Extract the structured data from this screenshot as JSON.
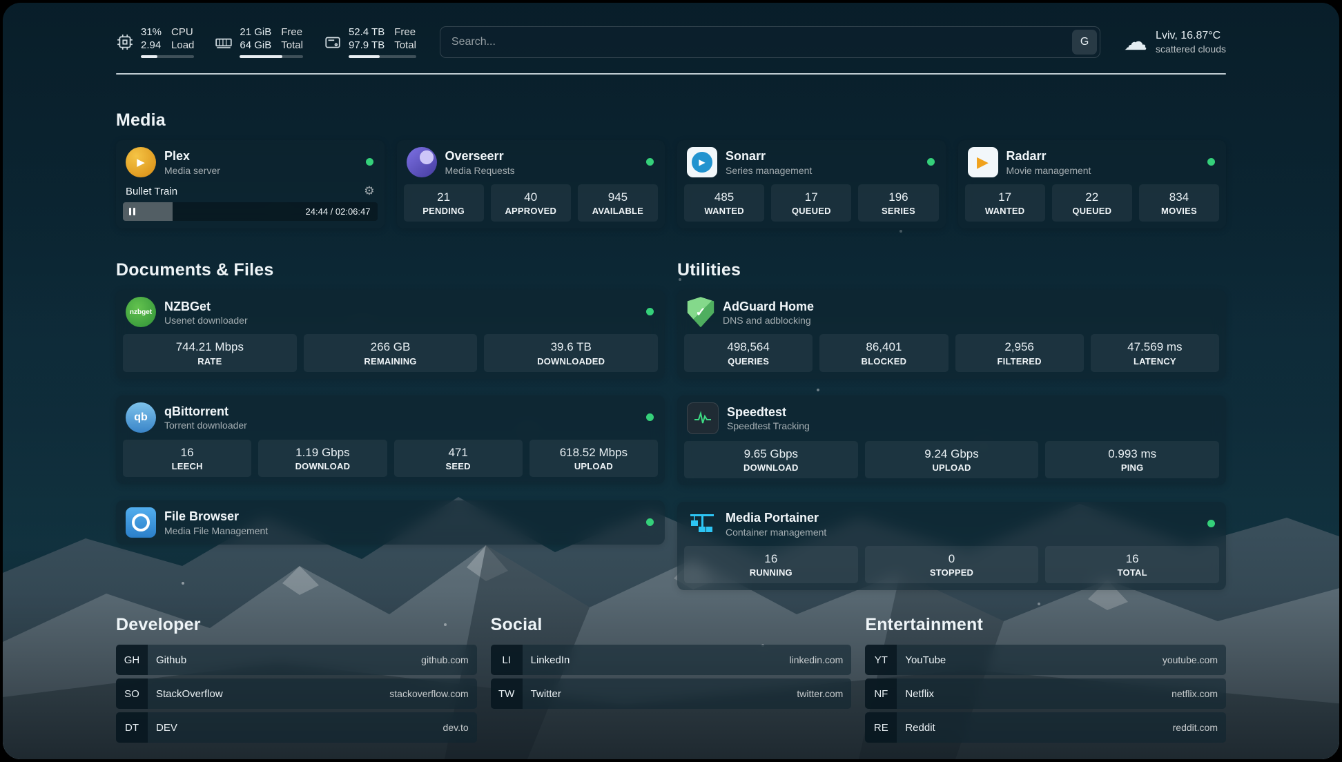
{
  "topbar": {
    "cpu": {
      "value": "31%",
      "load": "2.94",
      "label_top": "CPU",
      "label_bottom": "Load",
      "percent": 31
    },
    "memory": {
      "free": "21 GiB",
      "total": "64 GiB",
      "free_label": "Free",
      "total_label": "Total",
      "percent": 67
    },
    "disk": {
      "free": "52.4 TB",
      "total": "97.9 TB",
      "free_label": "Free",
      "total_label": "Total",
      "percent": 46
    },
    "search": {
      "placeholder": "Search...",
      "provider_label": "G"
    },
    "weather": {
      "location": "Lviv, 16.87°C",
      "condition": "scattered clouds"
    }
  },
  "sections": {
    "media": "Media",
    "documents": "Documents & Files",
    "utilities": "Utilities",
    "developer": "Developer",
    "social": "Social",
    "entertainment": "Entertainment"
  },
  "media": {
    "plex": {
      "title": "Plex",
      "subtitle": "Media server",
      "now_playing": "Bullet Train",
      "time": "24:44 / 02:06:47",
      "progress_percent": 19.5
    },
    "overseerr": {
      "title": "Overseerr",
      "subtitle": "Media Requests",
      "stats": [
        {
          "value": "21",
          "label": "PENDING"
        },
        {
          "value": "40",
          "label": "APPROVED"
        },
        {
          "value": "945",
          "label": "AVAILABLE"
        }
      ]
    },
    "sonarr": {
      "title": "Sonarr",
      "subtitle": "Series management",
      "stats": [
        {
          "value": "485",
          "label": "WANTED"
        },
        {
          "value": "17",
          "label": "QUEUED"
        },
        {
          "value": "196",
          "label": "SERIES"
        }
      ]
    },
    "radarr": {
      "title": "Radarr",
      "subtitle": "Movie management",
      "stats": [
        {
          "value": "17",
          "label": "WANTED"
        },
        {
          "value": "22",
          "label": "QUEUED"
        },
        {
          "value": "834",
          "label": "MOVIES"
        }
      ]
    }
  },
  "documents": {
    "nzbget": {
      "title": "NZBGet",
      "subtitle": "Usenet downloader",
      "stats": [
        {
          "value": "744.21 Mbps",
          "label": "RATE"
        },
        {
          "value": "266 GB",
          "label": "REMAINING"
        },
        {
          "value": "39.6 TB",
          "label": "DOWNLOADED"
        }
      ]
    },
    "qbittorrent": {
      "title": "qBittorrent",
      "subtitle": "Torrent downloader",
      "stats": [
        {
          "value": "16",
          "label": "LEECH"
        },
        {
          "value": "1.19 Gbps",
          "label": "DOWNLOAD"
        },
        {
          "value": "471",
          "label": "SEED"
        },
        {
          "value": "618.52 Mbps",
          "label": "UPLOAD"
        }
      ]
    },
    "filebrowser": {
      "title": "File Browser",
      "subtitle": "Media File Management"
    }
  },
  "utilities": {
    "adguard": {
      "title": "AdGuard Home",
      "subtitle": "DNS and adblocking",
      "stats": [
        {
          "value": "498,564",
          "label": "QUERIES"
        },
        {
          "value": "86,401",
          "label": "BLOCKED"
        },
        {
          "value": "2,956",
          "label": "FILTERED"
        },
        {
          "value": "47.569 ms",
          "label": "LATENCY"
        }
      ]
    },
    "speedtest": {
      "title": "Speedtest",
      "subtitle": "Speedtest Tracking",
      "stats": [
        {
          "value": "9.65 Gbps",
          "label": "DOWNLOAD"
        },
        {
          "value": "9.24 Gbps",
          "label": "UPLOAD"
        },
        {
          "value": "0.993 ms",
          "label": "PING"
        }
      ]
    },
    "portainer": {
      "title": "Media Portainer",
      "subtitle": "Container management",
      "stats": [
        {
          "value": "16",
          "label": "RUNNING"
        },
        {
          "value": "0",
          "label": "STOPPED"
        },
        {
          "value": "16",
          "label": "TOTAL"
        }
      ]
    }
  },
  "bookmarks": {
    "developer": [
      {
        "abbr": "GH",
        "name": "Github",
        "domain": "github.com"
      },
      {
        "abbr": "SO",
        "name": "StackOverflow",
        "domain": "stackoverflow.com"
      },
      {
        "abbr": "DT",
        "name": "DEV",
        "domain": "dev.to"
      }
    ],
    "social": [
      {
        "abbr": "LI",
        "name": "LinkedIn",
        "domain": "linkedin.com"
      },
      {
        "abbr": "TW",
        "name": "Twitter",
        "domain": "twitter.com"
      }
    ],
    "entertainment": [
      {
        "abbr": "YT",
        "name": "YouTube",
        "domain": "youtube.com"
      },
      {
        "abbr": "NF",
        "name": "Netflix",
        "domain": "netflix.com"
      },
      {
        "abbr": "RE",
        "name": "Reddit",
        "domain": "reddit.com"
      }
    ]
  },
  "icons": {
    "gear_glyph": "⚙",
    "cloud_glyph": "☁",
    "play_glyph": "▶",
    "check_glyph": "✓",
    "nzbget_label": "nzbget",
    "qbittorrent_label": "qb"
  },
  "colors": {
    "status_online": "#35d07a",
    "accent_green": "#3ddc84"
  }
}
